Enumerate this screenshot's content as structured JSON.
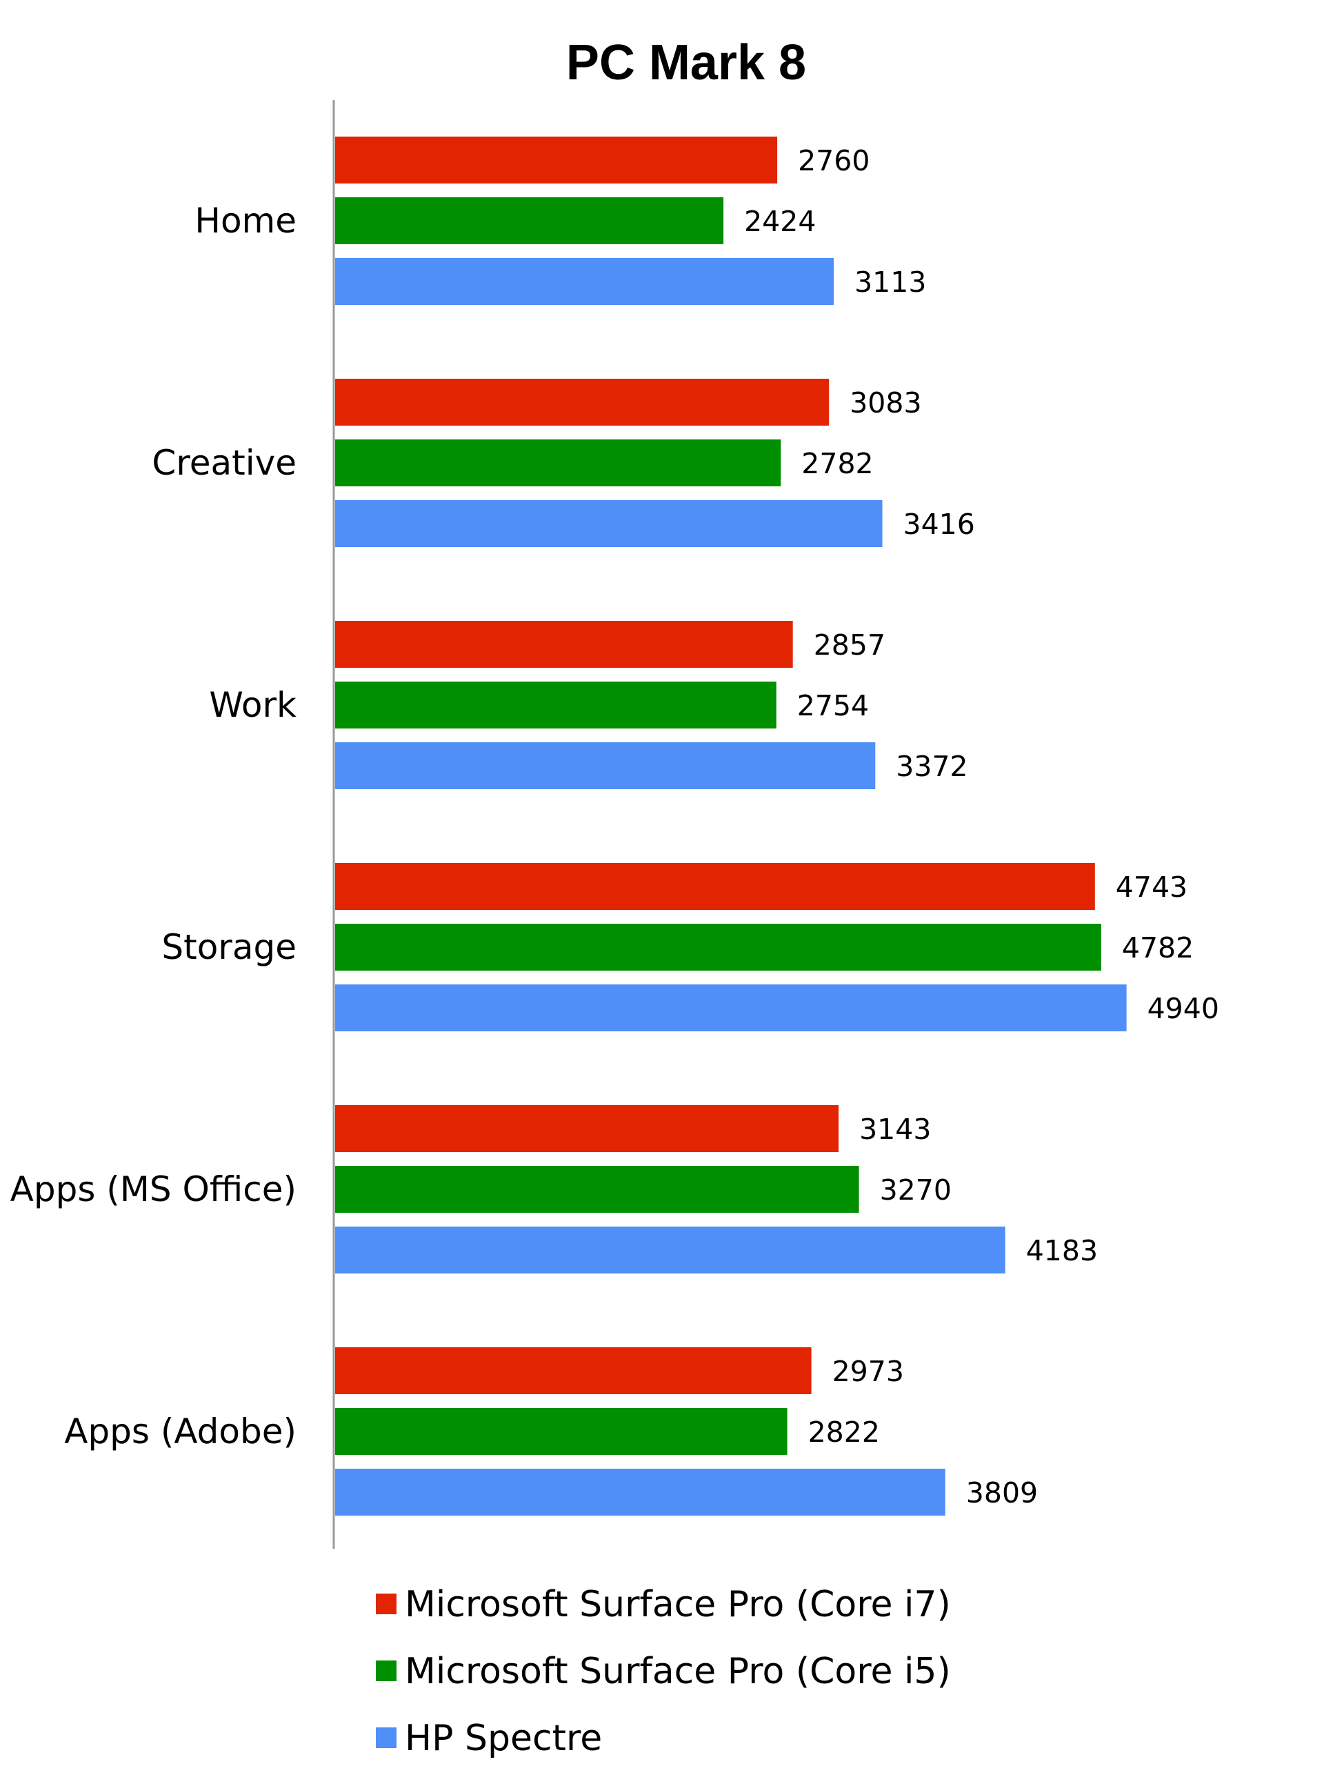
{
  "chart_data": {
    "type": "bar",
    "orientation": "horizontal",
    "title": "PC Mark 8",
    "xlabel": "",
    "ylabel": "",
    "xlim": [
      0,
      5000
    ],
    "grid": false,
    "legend_position": "bottom",
    "categories": [
      "Home",
      "Creative",
      "Work",
      "Storage",
      "Apps (MS Office)",
      "Apps (Adobe)"
    ],
    "series": [
      {
        "name": "Microsoft Surface Pro (Core i7)",
        "color": "#e32400",
        "values": [
          2760,
          3083,
          2857,
          4743,
          3143,
          2973
        ]
      },
      {
        "name": "Microsoft Surface Pro (Core i5)",
        "color": "#008f00",
        "values": [
          2424,
          2782,
          2754,
          4782,
          3270,
          2822
        ]
      },
      {
        "name": "HP Spectre",
        "color": "#4f8ff7",
        "values": [
          3113,
          3416,
          3372,
          4940,
          4183,
          3809
        ]
      }
    ]
  }
}
